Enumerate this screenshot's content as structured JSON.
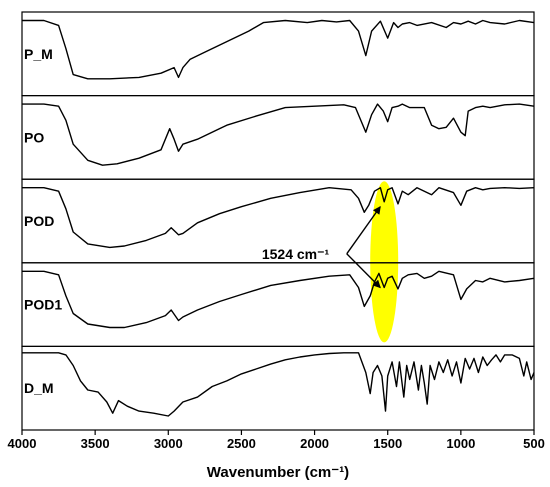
{
  "chart_data": {
    "type": "line",
    "x_axis": {
      "label": "Wavenumber (cm⁻¹)",
      "range": [
        4000,
        500
      ],
      "reversed": true,
      "ticks": [
        4000,
        3500,
        3000,
        2500,
        2000,
        1500,
        1000,
        500
      ]
    },
    "series": [
      {
        "name": "P_M",
        "points": [
          [
            4000,
            0.05
          ],
          [
            3850,
            0.05
          ],
          [
            3750,
            0.12
          ],
          [
            3700,
            0.45
          ],
          [
            3650,
            0.82
          ],
          [
            3550,
            0.88
          ],
          [
            3400,
            0.88
          ],
          [
            3200,
            0.86
          ],
          [
            3050,
            0.8
          ],
          [
            2960,
            0.72
          ],
          [
            2930,
            0.86
          ],
          [
            2900,
            0.72
          ],
          [
            2850,
            0.6
          ],
          [
            2750,
            0.5
          ],
          [
            2600,
            0.35
          ],
          [
            2450,
            0.2
          ],
          [
            2350,
            0.08
          ],
          [
            2200,
            0.05
          ],
          [
            2050,
            0.08
          ],
          [
            1950,
            0.05
          ],
          [
            1850,
            0.07
          ],
          [
            1760,
            0.05
          ],
          [
            1700,
            0.2
          ],
          [
            1650,
            0.55
          ],
          [
            1610,
            0.2
          ],
          [
            1550,
            0.06
          ],
          [
            1500,
            0.3
          ],
          [
            1460,
            0.08
          ],
          [
            1430,
            0.15
          ],
          [
            1400,
            0.1
          ],
          [
            1350,
            0.08
          ],
          [
            1300,
            0.12
          ],
          [
            1200,
            0.08
          ],
          [
            1100,
            0.15
          ],
          [
            1050,
            0.08
          ],
          [
            1000,
            0.1
          ],
          [
            950,
            0.06
          ],
          [
            900,
            0.1
          ],
          [
            850,
            0.05
          ],
          [
            800,
            0.08
          ],
          [
            700,
            0.1
          ],
          [
            600,
            0.05
          ],
          [
            500,
            0.08
          ]
        ]
      },
      {
        "name": "PO",
        "points": [
          [
            4000,
            0.05
          ],
          [
            3850,
            0.05
          ],
          [
            3750,
            0.08
          ],
          [
            3700,
            0.28
          ],
          [
            3650,
            0.62
          ],
          [
            3550,
            0.85
          ],
          [
            3450,
            0.92
          ],
          [
            3350,
            0.9
          ],
          [
            3200,
            0.82
          ],
          [
            3050,
            0.7
          ],
          [
            2990,
            0.4
          ],
          [
            2960,
            0.55
          ],
          [
            2930,
            0.72
          ],
          [
            2900,
            0.62
          ],
          [
            2800,
            0.55
          ],
          [
            2600,
            0.35
          ],
          [
            2400,
            0.22
          ],
          [
            2200,
            0.1
          ],
          [
            2000,
            0.08
          ],
          [
            1800,
            0.06
          ],
          [
            1720,
            0.1
          ],
          [
            1650,
            0.45
          ],
          [
            1610,
            0.2
          ],
          [
            1570,
            0.05
          ],
          [
            1530,
            0.15
          ],
          [
            1500,
            0.3
          ],
          [
            1470,
            0.1
          ],
          [
            1430,
            0.08
          ],
          [
            1400,
            0.05
          ],
          [
            1350,
            0.1
          ],
          [
            1250,
            0.1
          ],
          [
            1200,
            0.35
          ],
          [
            1150,
            0.4
          ],
          [
            1100,
            0.38
          ],
          [
            1050,
            0.25
          ],
          [
            1000,
            0.45
          ],
          [
            970,
            0.5
          ],
          [
            950,
            0.15
          ],
          [
            900,
            0.1
          ],
          [
            850,
            0.08
          ],
          [
            800,
            0.1
          ],
          [
            700,
            0.06
          ],
          [
            600,
            0.05
          ],
          [
            500,
            0.08
          ]
        ]
      },
      {
        "name": "POD",
        "points": [
          [
            4000,
            0.05
          ],
          [
            3850,
            0.05
          ],
          [
            3750,
            0.1
          ],
          [
            3700,
            0.35
          ],
          [
            3650,
            0.68
          ],
          [
            3550,
            0.85
          ],
          [
            3400,
            0.9
          ],
          [
            3300,
            0.88
          ],
          [
            3150,
            0.8
          ],
          [
            3020,
            0.7
          ],
          [
            2980,
            0.62
          ],
          [
            2930,
            0.72
          ],
          [
            2900,
            0.7
          ],
          [
            2800,
            0.55
          ],
          [
            2650,
            0.42
          ],
          [
            2500,
            0.32
          ],
          [
            2300,
            0.2
          ],
          [
            2100,
            0.12
          ],
          [
            1900,
            0.05
          ],
          [
            1750,
            0.08
          ],
          [
            1700,
            0.2
          ],
          [
            1660,
            0.4
          ],
          [
            1630,
            0.3
          ],
          [
            1590,
            0.1
          ],
          [
            1550,
            0.05
          ],
          [
            1524,
            0.25
          ],
          [
            1500,
            0.08
          ],
          [
            1470,
            0.05
          ],
          [
            1430,
            0.28
          ],
          [
            1400,
            0.1
          ],
          [
            1360,
            0.15
          ],
          [
            1300,
            0.05
          ],
          [
            1250,
            0.1
          ],
          [
            1200,
            0.15
          ],
          [
            1150,
            0.05
          ],
          [
            1050,
            0.12
          ],
          [
            1000,
            0.3
          ],
          [
            960,
            0.1
          ],
          [
            900,
            0.05
          ],
          [
            850,
            0.08
          ],
          [
            800,
            0.06
          ],
          [
            700,
            0.05
          ],
          [
            600,
            0.06
          ],
          [
            500,
            0.05
          ]
        ]
      },
      {
        "name": "POD1",
        "points": [
          [
            4000,
            0.05
          ],
          [
            3850,
            0.05
          ],
          [
            3750,
            0.1
          ],
          [
            3700,
            0.4
          ],
          [
            3650,
            0.65
          ],
          [
            3550,
            0.8
          ],
          [
            3400,
            0.85
          ],
          [
            3300,
            0.85
          ],
          [
            3150,
            0.78
          ],
          [
            3020,
            0.68
          ],
          [
            2980,
            0.6
          ],
          [
            2930,
            0.75
          ],
          [
            2900,
            0.7
          ],
          [
            2800,
            0.6
          ],
          [
            2650,
            0.48
          ],
          [
            2500,
            0.38
          ],
          [
            2300,
            0.25
          ],
          [
            2100,
            0.18
          ],
          [
            1900,
            0.12
          ],
          [
            1760,
            0.1
          ],
          [
            1700,
            0.28
          ],
          [
            1660,
            0.55
          ],
          [
            1620,
            0.4
          ],
          [
            1590,
            0.2
          ],
          [
            1560,
            0.08
          ],
          [
            1524,
            0.28
          ],
          [
            1500,
            0.15
          ],
          [
            1470,
            0.12
          ],
          [
            1430,
            0.3
          ],
          [
            1400,
            0.15
          ],
          [
            1360,
            0.1
          ],
          [
            1300,
            0.08
          ],
          [
            1250,
            0.15
          ],
          [
            1200,
            0.12
          ],
          [
            1150,
            0.05
          ],
          [
            1050,
            0.1
          ],
          [
            1000,
            0.45
          ],
          [
            960,
            0.3
          ],
          [
            900,
            0.18
          ],
          [
            850,
            0.2
          ],
          [
            800,
            0.15
          ],
          [
            700,
            0.2
          ],
          [
            600,
            0.18
          ],
          [
            500,
            0.15
          ]
        ]
      },
      {
        "name": "D_M",
        "points": [
          [
            4000,
            0.02
          ],
          [
            3750,
            0.02
          ],
          [
            3700,
            0.05
          ],
          [
            3650,
            0.2
          ],
          [
            3600,
            0.42
          ],
          [
            3550,
            0.55
          ],
          [
            3480,
            0.58
          ],
          [
            3420,
            0.72
          ],
          [
            3380,
            0.88
          ],
          [
            3340,
            0.7
          ],
          [
            3280,
            0.78
          ],
          [
            3200,
            0.85
          ],
          [
            3100,
            0.88
          ],
          [
            3000,
            0.92
          ],
          [
            2960,
            0.85
          ],
          [
            2900,
            0.72
          ],
          [
            2800,
            0.65
          ],
          [
            2700,
            0.5
          ],
          [
            2600,
            0.42
          ],
          [
            2500,
            0.32
          ],
          [
            2400,
            0.25
          ],
          [
            2300,
            0.18
          ],
          [
            2200,
            0.12
          ],
          [
            2100,
            0.08
          ],
          [
            2000,
            0.05
          ],
          [
            1900,
            0.03
          ],
          [
            1800,
            0.02
          ],
          [
            1700,
            0.02
          ],
          [
            1650,
            0.3
          ],
          [
            1620,
            0.6
          ],
          [
            1600,
            0.3
          ],
          [
            1570,
            0.2
          ],
          [
            1540,
            0.35
          ],
          [
            1515,
            0.85
          ],
          [
            1500,
            0.35
          ],
          [
            1470,
            0.15
          ],
          [
            1440,
            0.5
          ],
          [
            1420,
            0.15
          ],
          [
            1390,
            0.65
          ],
          [
            1370,
            0.2
          ],
          [
            1350,
            0.4
          ],
          [
            1320,
            0.15
          ],
          [
            1290,
            0.55
          ],
          [
            1270,
            0.2
          ],
          [
            1250,
            0.45
          ],
          [
            1230,
            0.75
          ],
          [
            1210,
            0.2
          ],
          [
            1180,
            0.4
          ],
          [
            1150,
            0.15
          ],
          [
            1120,
            0.3
          ],
          [
            1090,
            0.12
          ],
          [
            1060,
            0.35
          ],
          [
            1030,
            0.15
          ],
          [
            1000,
            0.45
          ],
          [
            970,
            0.1
          ],
          [
            940,
            0.25
          ],
          [
            910,
            0.1
          ],
          [
            880,
            0.3
          ],
          [
            850,
            0.08
          ],
          [
            820,
            0.2
          ],
          [
            790,
            0.12
          ],
          [
            760,
            0.05
          ],
          [
            730,
            0.15
          ],
          [
            700,
            0.05
          ],
          [
            650,
            0.05
          ],
          [
            600,
            0.1
          ],
          [
            570,
            0.35
          ],
          [
            550,
            0.15
          ],
          [
            520,
            0.4
          ],
          [
            500,
            0.3
          ]
        ]
      }
    ],
    "annotation": {
      "text": "1524 cm⁻¹",
      "x": 1524,
      "targets": [
        "POD",
        "POD1"
      ],
      "highlight_color": "#ffff00"
    }
  },
  "colors": {
    "line": "#000000",
    "highlight": "#ffff00"
  }
}
